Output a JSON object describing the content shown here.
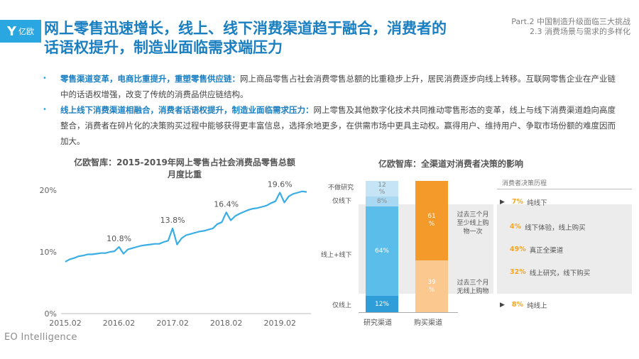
{
  "header": {
    "logo_mark": "Y",
    "logo_text": "亿欧",
    "title_line1": "网上零售迅速增长，线上、线下消费渠道趋于融合，消费者的",
    "title_line2": "话语权提升，制造业面临需求端压力",
    "part_line1": "Part.2 中国制造升级面临三大挑战",
    "part_line2": "2.3 消费场景与需求的多样化"
  },
  "bullets": [
    {
      "highlight": "零售渠道变革，电商比重提升，重塑零售供应链：",
      "text": "网上商品零售占社会消费零售总额的比重稳步上升，居民消费逐步向线上转移。互联网零售企业在产业链中的话语权增强，改变了传统的消费品供应链结构。"
    },
    {
      "highlight": "线上线下消费渠道相融合，消费者话语权提升，制造业面临需求压力：",
      "text": "网上零售及其他数字化技术共同推动零售形态的变革，线上与线下消费渠道趋向高度整合，消费者在碎片化的决策购买过程中能够获得更丰富信息，选择余地更多，在供需市场中更具主动权。赢得用户、维持用户、争取市场份额的难度因而加大。"
    }
  ],
  "left_chart": {
    "title_line1": "亿欧智库：2015-2019年网上零售占社会消费品零售总额",
    "title_line2": "月度比重"
  },
  "chart_data": [
    {
      "type": "line",
      "title": "亿欧智库：2015-2019年网上零售占社会消费品零售总额月度比重",
      "y_ticks": [
        "20%",
        "10%",
        "0%"
      ],
      "x_ticks": [
        "2015.02",
        "2016.02",
        "2017.02",
        "2018.02",
        "2019.02"
      ],
      "ylim": [
        0,
        20
      ],
      "annotations": [
        {
          "x": 12,
          "y": 10.8,
          "label": "10.8%"
        },
        {
          "x": 24,
          "y": 13.8,
          "label": "13.8%"
        },
        {
          "x": 36,
          "y": 16.4,
          "label": "16.4%"
        },
        {
          "x": 48,
          "y": 19.6,
          "label": "19.6%"
        }
      ],
      "series": [
        {
          "color": "#3aaee4",
          "values": [
            8.4,
            8.8,
            9.0,
            9.3,
            9.4,
            9.6,
            9.6,
            9.7,
            9.8,
            9.8,
            10.0,
            10.1,
            10.8,
            9.7,
            10.4,
            10.6,
            10.8,
            11.0,
            11.1,
            11.2,
            11.3,
            11.3,
            11.6,
            11.8,
            13.8,
            11.2,
            12.2,
            12.7,
            12.9,
            13.1,
            13.3,
            13.4,
            13.6,
            13.8,
            14.5,
            14.8,
            16.4,
            15.1,
            15.8,
            16.2,
            16.5,
            16.8,
            17.0,
            17.1,
            17.3,
            17.5,
            17.9,
            18.2,
            19.6,
            18.0,
            19.0,
            19.4,
            19.6,
            19.8,
            19.7
          ]
        }
      ]
    },
    {
      "type": "bar",
      "title": "亿欧智库：全渠道对消费者决策的影响",
      "categories": [
        "研究渠道",
        "购买渠道"
      ],
      "series": [
        {
          "name": "仅线上",
          "values": [
            12,
            null
          ]
        },
        {
          "name": "线上+线下",
          "values": [
            64,
            null
          ]
        },
        {
          "name": "仅线下",
          "values": [
            8,
            null
          ]
        },
        {
          "name": "不做研究",
          "values": [
            12,
            null
          ]
        },
        {
          "name": "过去三个月无线上购物",
          "values": [
            null,
            39
          ]
        },
        {
          "name": "过去三个月至少线上购物一次",
          "values": [
            null,
            61
          ]
        }
      ]
    }
  ],
  "right_chart": {
    "title": "亿欧智库：全渠道对消费者决策的影响",
    "research_labels": {
      "no_research": "不做研究",
      "offline_only": "仅线下",
      "both": "线上+线下",
      "online_only": "仅线上"
    },
    "research_pcts": {
      "online_only": "12%",
      "both": "64%",
      "offline_only": "8%",
      "no_research": "12\n%"
    },
    "buy_pcts": {
      "online": "61\n%",
      "offline": "39\n%"
    },
    "buy_labels": {
      "online": "过去三个月\n至少线上购\n物一次",
      "offline": "过去三个月\n无线上购物"
    },
    "x_labels": {
      "research": "研究渠道",
      "buy": "购买渠道"
    },
    "decision_header": "消费者决策历程",
    "decisions": [
      {
        "pct": "7%",
        "label": "纯线下"
      },
      {
        "pct": "4%",
        "label": "线下体验，线上购买"
      },
      {
        "pct": "49%",
        "label": "真正全渠道"
      },
      {
        "pct": "32%",
        "label": "线上研究，线下购买"
      },
      {
        "pct": "8%",
        "label": "纯线上"
      }
    ],
    "colors": {
      "light": "#c5e4f5",
      "mid": "#7fcaef",
      "main": "#5bbdea",
      "dark": "#2f9ed8",
      "orange": "#f49a2a",
      "peach": "#fbc88f",
      "gray": "#e3e3e3"
    }
  },
  "footer": {
    "logo": "EO Intelligence"
  }
}
